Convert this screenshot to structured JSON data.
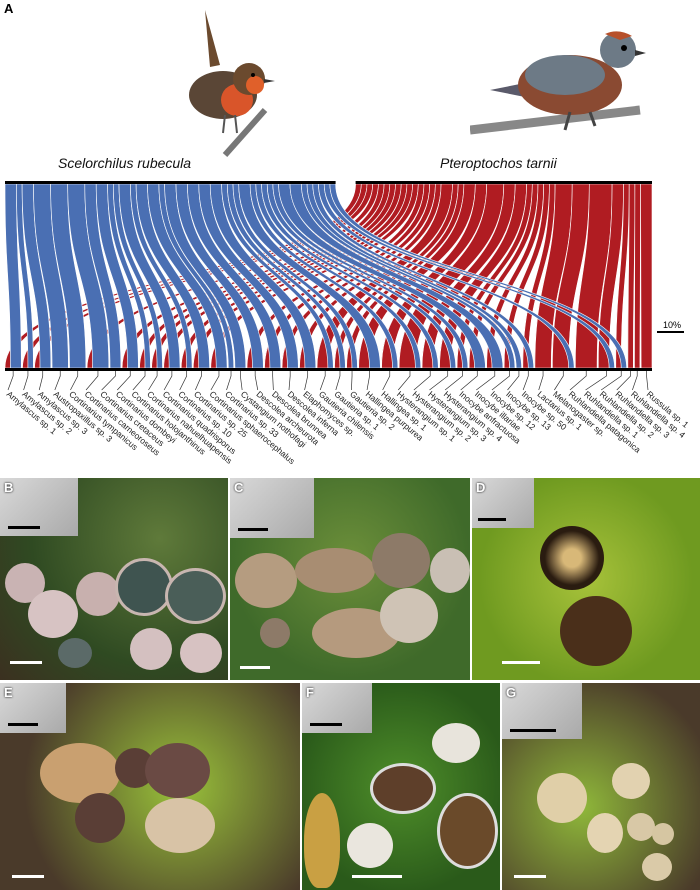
{
  "panel_A": {
    "letter": "A",
    "birds": [
      {
        "name": "Scelorchilus rubecula",
        "color": "#4a6fb3"
      },
      {
        "name": "Pteroptochos tarnii",
        "color": "#b01c22"
      }
    ],
    "scale_label": "10%",
    "fungi": [
      {
        "name": "Amylascus sp. 1",
        "blue": 2,
        "red": 1
      },
      {
        "name": "Amylascus sp. 2",
        "blue": 1,
        "red": 1
      },
      {
        "name": "Amylascus sp. 3",
        "blue": 2,
        "red": 1
      },
      {
        "name": "Austropaxillus sp. 3",
        "blue": 3,
        "red": 0
      },
      {
        "name": "Cortinarius tympanicus",
        "blue": 3,
        "red": 0
      },
      {
        "name": "Cortinarius carneoroseus",
        "blue": 3,
        "red": 1
      },
      {
        "name": "Cortinarius cretaceus",
        "blue": 2,
        "red": 0
      },
      {
        "name": "Cortinarius dombeyi",
        "blue": 2,
        "red": 1
      },
      {
        "name": "Cortinarius holojanthinus",
        "blue": 1,
        "red": 1
      },
      {
        "name": "Cortinarius nahuelhuapensis",
        "blue": 1,
        "red": 1
      },
      {
        "name": "Cortinarius quadrisporus",
        "blue": 2,
        "red": 1
      },
      {
        "name": "Cortinarius sp. 10",
        "blue": 1,
        "red": 1
      },
      {
        "name": "Cortinarius sp. 25",
        "blue": 2,
        "red": 1
      },
      {
        "name": "Cortinarius sphaerocephalus",
        "blue": 2,
        "red": 1
      },
      {
        "name": "Cortinarius sp. 33",
        "blue": 1,
        "red": 0
      },
      {
        "name": "Cystangium nothofagi",
        "blue": 2,
        "red": 0
      },
      {
        "name": "Descolea archeurota",
        "blue": 2,
        "red": 1
      },
      {
        "name": "Descolea brunnea",
        "blue": 2,
        "red": 1
      },
      {
        "name": "Descolea inferna",
        "blue": 2,
        "red": 1
      },
      {
        "name": "Elaphomyces sp.",
        "blue": 2,
        "red": 1
      },
      {
        "name": "Gautieria chilensis",
        "blue": 1,
        "red": 2
      },
      {
        "name": "Gautieria sp. 1",
        "blue": 1,
        "red": 1
      },
      {
        "name": "Gautieria sp. 2",
        "blue": 1,
        "red": 1
      },
      {
        "name": "Hallingea purpurea",
        "blue": 2,
        "red": 2
      },
      {
        "name": "Hallingea sp. 1",
        "blue": 1,
        "red": 2
      },
      {
        "name": "Hysterangium sp. 1",
        "blue": 1,
        "red": 3
      },
      {
        "name": "Hysterangium sp. 2",
        "blue": 1,
        "red": 2
      },
      {
        "name": "Hysterangium sp. 3",
        "blue": 1,
        "red": 2
      },
      {
        "name": "Hysterangium sp. 4",
        "blue": 1,
        "red": 1
      },
      {
        "name": "Inocybe anfractuosa",
        "blue": 2,
        "red": 1
      },
      {
        "name": "Inocybe illariae",
        "blue": 2,
        "red": 1
      },
      {
        "name": "Inocybe sp. 12",
        "blue": 1,
        "red": 1
      },
      {
        "name": "Inocybe sp. 13",
        "blue": 1,
        "red": 0
      },
      {
        "name": "Inocybe sp. 50",
        "blue": 1,
        "red": 1
      },
      {
        "name": "Lactarius sp. 1",
        "blue": 0,
        "red": 3
      },
      {
        "name": "Melanogaster sp.",
        "blue": 1,
        "red": 3
      },
      {
        "name": "Ruhlandiella patagonica",
        "blue": 0,
        "red": 4
      },
      {
        "name": "Ruhlandiella sp. 1",
        "blue": 1,
        "red": 2
      },
      {
        "name": "Ruhlandiella sp. 2",
        "blue": 1,
        "red": 1
      },
      {
        "name": "Ruhlandiella sp. 3",
        "blue": 0,
        "red": 1
      },
      {
        "name": "Ruhlandiella sp. 4",
        "blue": 0,
        "red": 1
      },
      {
        "name": "Russula sp. 1",
        "blue": 0,
        "red": 2
      }
    ]
  },
  "photos": [
    {
      "letter": "B"
    },
    {
      "letter": "C"
    },
    {
      "letter": "D"
    },
    {
      "letter": "E"
    },
    {
      "letter": "F"
    },
    {
      "letter": "G"
    }
  ]
}
